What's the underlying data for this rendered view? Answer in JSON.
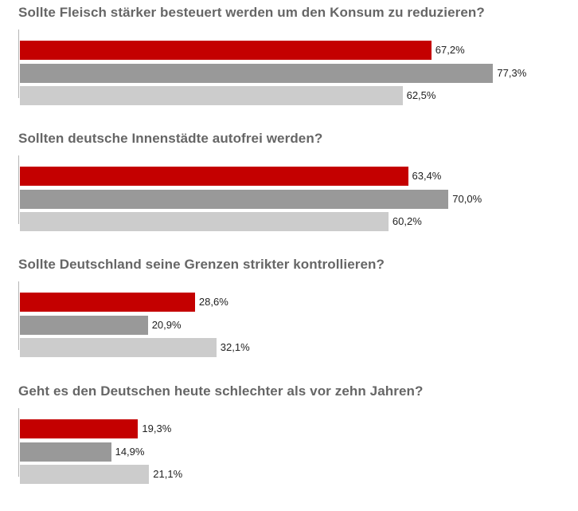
{
  "colors": {
    "series1": "#c40000",
    "series2": "#999999",
    "series3": "#cccccc",
    "title": "#666666"
  },
  "chart_data": [
    {
      "type": "bar",
      "orientation": "horizontal",
      "title": "Sollte Fleisch stärker besteuert werden um den Konsum zu reduzieren?",
      "xlim": [
        0,
        100
      ],
      "grid": false,
      "values": [
        67.2,
        77.3,
        62.5
      ],
      "labels": [
        "67,2%",
        "77,3%",
        "62,5%"
      ],
      "colors": [
        "#c40000",
        "#999999",
        "#cccccc"
      ]
    },
    {
      "type": "bar",
      "orientation": "horizontal",
      "title": "Sollten deutsche Innenstädte autofrei werden?",
      "xlim": [
        0,
        100
      ],
      "grid": false,
      "values": [
        63.4,
        70.0,
        60.2
      ],
      "labels": [
        "63,4%",
        "70,0%",
        "60,2%"
      ],
      "colors": [
        "#c40000",
        "#999999",
        "#cccccc"
      ]
    },
    {
      "type": "bar",
      "orientation": "horizontal",
      "title": "Sollte Deutschland seine Grenzen strikter kontrollieren?",
      "xlim": [
        0,
        100
      ],
      "grid": false,
      "values": [
        28.6,
        20.9,
        32.1
      ],
      "labels": [
        "28,6%",
        "20,9%",
        "32,1%"
      ],
      "colors": [
        "#c40000",
        "#999999",
        "#cccccc"
      ]
    },
    {
      "type": "bar",
      "orientation": "horizontal",
      "title": "Geht es den Deutschen heute schlechter als vor zehn Jahren?",
      "xlim": [
        0,
        100
      ],
      "grid": false,
      "values": [
        19.3,
        14.9,
        21.1
      ],
      "labels": [
        "19,3%",
        "14,9%",
        "21,1%"
      ],
      "colors": [
        "#c40000",
        "#999999",
        "#cccccc"
      ]
    }
  ]
}
